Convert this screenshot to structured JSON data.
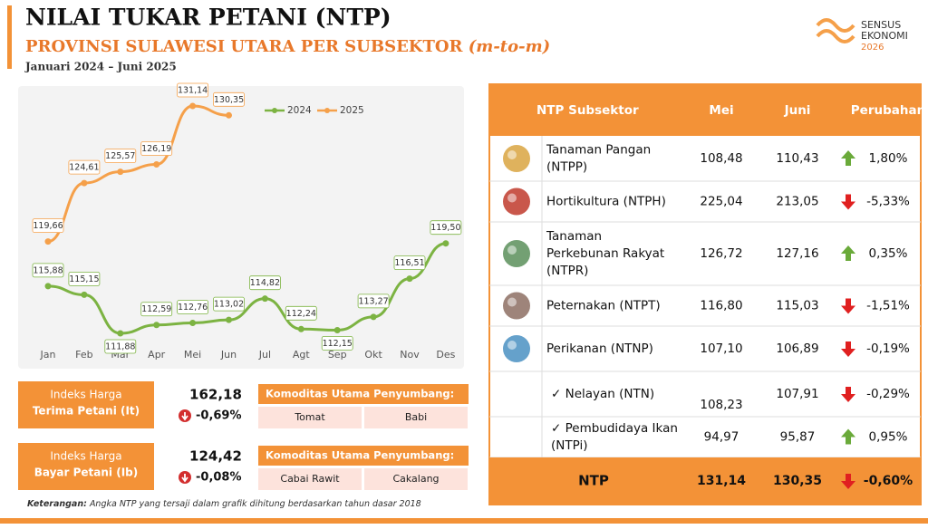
{
  "header": {
    "title": "NILAI TUKAR PETANI (NTP)",
    "subtitle": "PROVINSI SULAWESI UTARA PER SUBSEKTOR",
    "subtitle_note": "(m-to-m)",
    "period": "Januari 2024 – Juni 2025"
  },
  "logo": {
    "line1": "SENSUS",
    "line2": "EKONOMI",
    "line3": "2026"
  },
  "chart_data": {
    "type": "line",
    "categories": [
      "Jan",
      "Feb",
      "Mar",
      "Apr",
      "Mei",
      "Jun",
      "Jul",
      "Agt",
      "Sep",
      "Okt",
      "Nov",
      "Des"
    ],
    "series": [
      {
        "name": "2024",
        "color": "#7cb342",
        "values": [
          115.88,
          115.15,
          111.88,
          112.59,
          112.76,
          113.02,
          114.82,
          112.24,
          112.15,
          113.27,
          116.51,
          119.5
        ],
        "value_labels": [
          "115,88",
          "115,15",
          "111,88",
          "112,59",
          "112,76",
          "113,02",
          "114,82",
          "112,24",
          "112,15",
          "113,27",
          "116,51",
          "119,50"
        ]
      },
      {
        "name": "2025",
        "color": "#f5a04a",
        "values": [
          119.66,
          124.61,
          125.57,
          126.19,
          131.14,
          130.35,
          null,
          null,
          null,
          null,
          null,
          null
        ],
        "value_labels": [
          "119,66",
          "124,61",
          "125,57",
          "126,19",
          "131,14",
          "130,35",
          null,
          null,
          null,
          null,
          null,
          null
        ]
      }
    ],
    "legend": "top"
  },
  "indices": [
    {
      "label1": "Indeks Harga",
      "label2": "Terima Petani (It)",
      "value": "162,18",
      "change": "-0,69%",
      "commodity_title": "Komoditas Utama Penyumbang:",
      "commodities": [
        "Tomat",
        "Babi"
      ]
    },
    {
      "label1": "Indeks Harga",
      "label2": "Bayar Petani (Ib)",
      "value": "124,42",
      "change": "-0,08%",
      "commodity_title": "Komoditas Utama Penyumbang:",
      "commodities": [
        "Cabai Rawit",
        "Cakalang"
      ]
    }
  ],
  "table": {
    "header": [
      "NTP Subsektor",
      "Mei",
      "Juni",
      "Perubahan"
    ],
    "rows": [
      {
        "name": [
          "Tanaman Pangan",
          "(NTPP)"
        ],
        "may": "108,48",
        "june": "110,43",
        "change": "1,80%"
      },
      {
        "name": [
          "Hortikultura (NTPH)"
        ],
        "may": "225,04",
        "june": "213,05",
        "change": "-5,33%"
      },
      {
        "name": [
          "Tanaman",
          "Perkebunan Rakyat",
          "(NTPR)"
        ],
        "may": "126,72",
        "june": "127,16",
        "change": "0,35%"
      },
      {
        "name": [
          "Peternakan (NTPT)"
        ],
        "may": "116,80",
        "june": "115,03",
        "change": "-1,51%"
      },
      {
        "name": [
          "Perikanan (NTNP)"
        ],
        "may": "107,10",
        "june": "106,89",
        "change": "-0,19%"
      },
      {
        "name": [
          "✓ Nelayan (NTN)"
        ],
        "may": "108,23",
        "june": "107,91",
        "change": "-0,29%"
      },
      {
        "name": [
          "✓ Pembudidaya Ikan",
          "(NTPi)"
        ],
        "may": "94,97",
        "june": "95,87",
        "change": "0,95%"
      }
    ],
    "total": {
      "name": "NTP",
      "may": "131,14",
      "june": "130,35",
      "change": "-0,60%"
    }
  },
  "footnote": {
    "label": "Keterangan:",
    "text": "Angka NTP yang tersaji dalam grafik dihitung berdasarkan tahun dasar 2018"
  }
}
